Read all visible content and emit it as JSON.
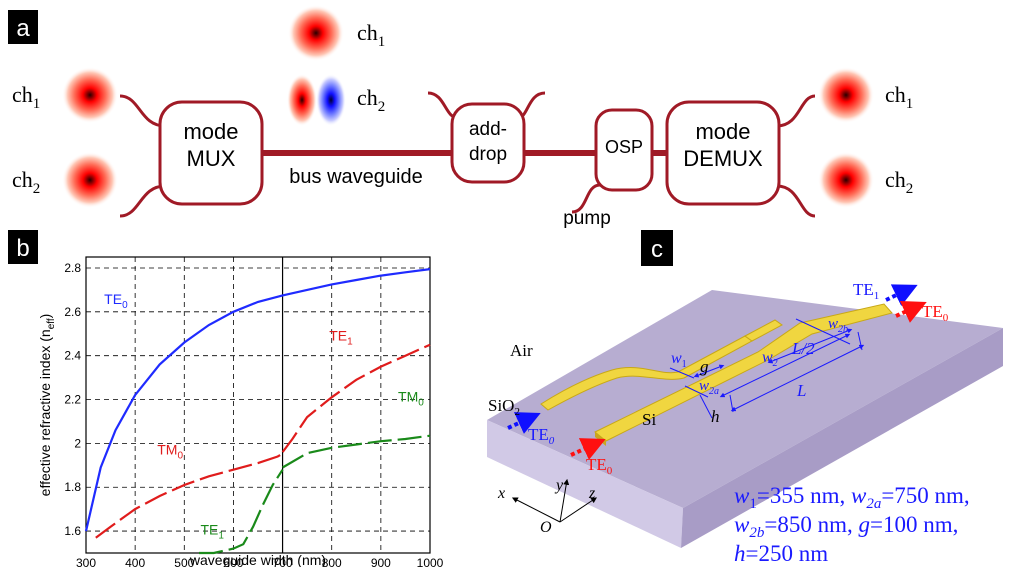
{
  "panel_a": {
    "tag": "a",
    "blocks": {
      "mux": [
        "mode",
        "MUX"
      ],
      "adddrop": [
        "add-",
        "drop"
      ],
      "osp": "OSP",
      "demux": [
        "mode",
        "DEMUX"
      ]
    },
    "bus_label": "bus waveguide",
    "pump_label": "pump",
    "channels": {
      "ch1_base": "ch",
      "ch1_sub": "1",
      "ch2_base": "ch",
      "ch2_sub": "2"
    }
  },
  "panel_b": {
    "tag": "b"
  },
  "panel_c": {
    "tag": "c",
    "labels": {
      "air": "Air",
      "sio2_base": "SiO",
      "sio2_sub": "2",
      "si": "Si",
      "te_in1_base": "TE",
      "te_in1_sub": "0",
      "te_in2_base": "TE",
      "te_in2_sub": "0",
      "te_out1_base": "TE",
      "te_out1_sub": "1",
      "te_out2_base": "TE",
      "te_out2_sub": "0",
      "w1": "w",
      "w1_sub": "1",
      "g": "g",
      "w2a": "w",
      "w2a_sub": "2a",
      "w2": "w",
      "w2_sub": "2",
      "l_half": "L/2",
      "w2b": "w",
      "w2b_sub": "2b",
      "l": "L",
      "h": "h",
      "axis_x": "x",
      "axis_y": "y",
      "axis_z": "z",
      "axis_o": "O"
    },
    "params": [
      {
        "a": "w",
        "a_sub": "1",
        "a_val": "=355 nm, ",
        "b": "w",
        "b_sub": "2a",
        "b_val": "=750 nm,"
      },
      {
        "a": "w",
        "a_sub": "2b",
        "a_val": "=850 nm, ",
        "b": "g",
        "b_sub": "",
        "b_val": "=100 nm,"
      },
      {
        "a": "h",
        "a_sub": "",
        "a_val": "=250 nm",
        "b": "",
        "b_sub": "",
        "b_val": ""
      }
    ]
  },
  "chart_data": {
    "type": "line",
    "xlabel": "waveguide width (nm)",
    "ylabel_base": "effective refractive index (n",
    "ylabel_sub": "eff",
    "ylabel_end": ")",
    "xlim": [
      300,
      1000
    ],
    "ylim": [
      1.5,
      2.85
    ],
    "xticks": [
      300,
      400,
      500,
      600,
      700,
      800,
      900,
      1000
    ],
    "yticks": [
      1.6,
      1.8,
      2,
      2.2,
      2.4,
      2.6,
      2.8
    ],
    "ytick_labels": [
      "1.6",
      "1.8",
      "2",
      "2.2",
      "2.4",
      "2.6",
      "2.8"
    ],
    "grid": true,
    "series": [
      {
        "name": "TE",
        "sub": "0",
        "color": "#1f2bff",
        "dashed": false,
        "x": [
          300,
          330,
          360,
          400,
          450,
          500,
          550,
          600,
          650,
          700,
          750,
          800,
          850,
          900,
          950,
          1000
        ],
        "y": [
          1.6,
          1.89,
          2.06,
          2.22,
          2.36,
          2.46,
          2.54,
          2.6,
          2.645,
          2.675,
          2.7,
          2.725,
          2.745,
          2.765,
          2.78,
          2.795
        ]
      },
      {
        "name": "TE",
        "sub": "1",
        "color": "#e01c1c",
        "dashed": true,
        "x": [
          700,
          720,
          750,
          800,
          850,
          900,
          950,
          1000
        ],
        "y": [
          1.96,
          2.02,
          2.12,
          2.21,
          2.29,
          2.35,
          2.4,
          2.45
        ]
      },
      {
        "name": "TM",
        "sub": "0",
        "color": "#e01c1c",
        "dashed": true,
        "x": [
          320,
          350,
          400,
          450,
          500,
          550,
          600,
          650,
          690,
          705
        ],
        "y": [
          1.57,
          1.62,
          1.7,
          1.76,
          1.81,
          1.85,
          1.88,
          1.91,
          1.94,
          1.96
        ]
      },
      {
        "name": "TM",
        "sub": "0",
        "color": "#1a8a1a",
        "dashed": true,
        "x": [
          700,
          750,
          800,
          850,
          900,
          950,
          1000
        ],
        "y": [
          1.89,
          1.955,
          1.98,
          1.995,
          2.01,
          2.02,
          2.035
        ]
      },
      {
        "name": "TE",
        "sub": "1",
        "color": "#1a8a1a",
        "dashed": true,
        "x": [
          530,
          560,
          600,
          620,
          640,
          660,
          680,
          700
        ],
        "y": [
          1.47,
          1.49,
          1.52,
          1.54,
          1.62,
          1.72,
          1.81,
          1.88
        ]
      }
    ],
    "labels": [
      {
        "text": "TE",
        "sub": "0",
        "color": "#1f2bff",
        "x": 337,
        "y": 2.635
      },
      {
        "text": "TE",
        "sub": "1",
        "color": "#e01c1c",
        "x": 795,
        "y": 2.47
      },
      {
        "text": "TM",
        "sub": "0",
        "color": "#e01c1c",
        "x": 445,
        "y": 1.95
      },
      {
        "text": "TM",
        "sub": "0",
        "color": "#1a8a1a",
        "x": 935,
        "y": 2.19
      },
      {
        "text": "TE",
        "sub": "1",
        "color": "#1a8a1a",
        "x": 533,
        "y": 1.585
      }
    ]
  }
}
